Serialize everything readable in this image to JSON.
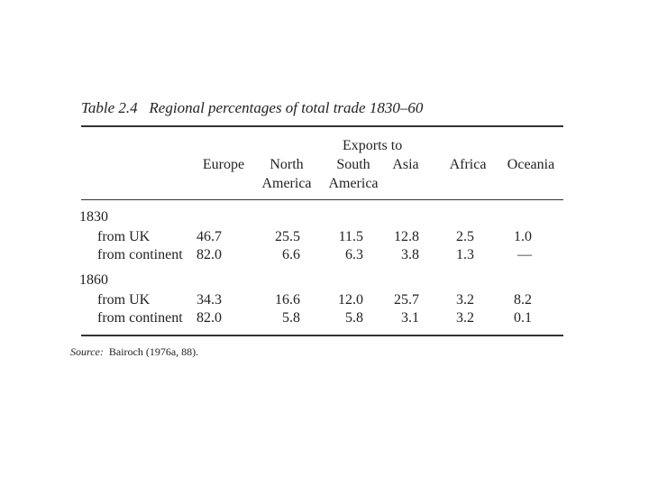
{
  "caption": {
    "label": "Table 2.4",
    "title": "Regional percentages of total trade 1830–60"
  },
  "table": {
    "spanner": "Exports to",
    "columns": [
      "Europe",
      "North America",
      "South America",
      "Asia",
      "Africa",
      "Oceania"
    ],
    "groups": [
      {
        "year": "1830",
        "rows": [
          {
            "label": "from UK",
            "values": [
              "46.7",
              "25.5",
              "11.5",
              "12.8",
              "2.5",
              "1.0"
            ]
          },
          {
            "label": "from continent",
            "values": [
              "82.0",
              "6.6",
              "6.3",
              "3.8",
              "1.3",
              "—"
            ]
          }
        ]
      },
      {
        "year": "1860",
        "rows": [
          {
            "label": "from UK",
            "values": [
              "34.3",
              "16.6",
              "12.0",
              "25.7",
              "3.2",
              "8.2"
            ]
          },
          {
            "label": "from continent",
            "values": [
              "82.0",
              "5.8",
              "5.8",
              "3.1",
              "3.2",
              "0.1"
            ]
          }
        ]
      }
    ]
  },
  "source": {
    "label": "Source:",
    "text": "Bairoch (1976a, 88)."
  }
}
